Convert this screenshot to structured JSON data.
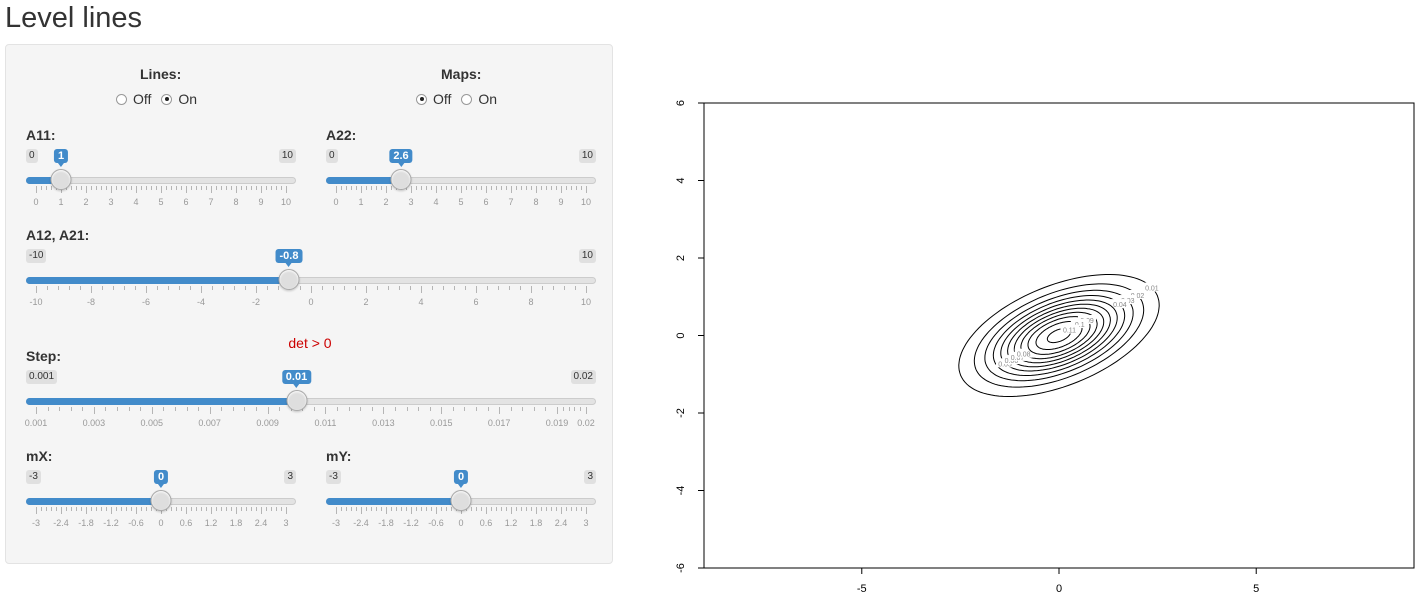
{
  "page": {
    "title": "Level lines"
  },
  "lines": {
    "label": "Lines:",
    "options": [
      "Off",
      "On"
    ],
    "selected": "On"
  },
  "maps": {
    "label": "Maps:",
    "options": [
      "Off",
      "On"
    ],
    "selected": "Off"
  },
  "sliders": {
    "a11": {
      "label": "A11:",
      "min": 0,
      "max": 10,
      "value": 1,
      "min_label": "0",
      "max_label": "10",
      "value_label": "1",
      "tick_labels": [
        "0",
        "1",
        "2",
        "3",
        "4",
        "5",
        "6",
        "7",
        "8",
        "9",
        "10"
      ]
    },
    "a22": {
      "label": "A22:",
      "min": 0,
      "max": 10,
      "value": 2.6,
      "min_label": "0",
      "max_label": "10",
      "value_label": "2.6",
      "tick_labels": [
        "0",
        "1",
        "2",
        "3",
        "4",
        "5",
        "6",
        "7",
        "8",
        "9",
        "10"
      ]
    },
    "a12": {
      "label": "A12, A21:",
      "min": -10,
      "max": 10,
      "value": -0.8,
      "min_label": "-10",
      "max_label": "10",
      "value_label": "-0.8",
      "tick_labels": [
        "-10",
        "-8",
        "-6",
        "-4",
        "-2",
        "0",
        "2",
        "4",
        "6",
        "8",
        "10"
      ]
    },
    "step": {
      "label": "Step:",
      "min": 0.001,
      "max": 0.02,
      "value": 0.01,
      "min_label": "0.001",
      "max_label": "0.02",
      "value_label": "0.01",
      "tick_labels": [
        "0.001",
        "0.003",
        "0.005",
        "0.007",
        "0.009",
        "0.011",
        "0.013",
        "0.015",
        "0.017",
        "0.019",
        "0.02"
      ],
      "tick_values": [
        0.001,
        0.003,
        0.005,
        0.007,
        0.009,
        0.011,
        0.013,
        0.015,
        0.017,
        0.019,
        0.02
      ]
    },
    "mx": {
      "label": "mX:",
      "min": -3,
      "max": 3,
      "value": 0,
      "min_label": "-3",
      "max_label": "3",
      "value_label": "0",
      "tick_labels": [
        "-3",
        "-2.4",
        "-1.8",
        "-1.2",
        "-0.6",
        "0",
        "0.6",
        "1.2",
        "1.8",
        "2.4",
        "3"
      ]
    },
    "my": {
      "label": "mY:",
      "min": -3,
      "max": 3,
      "value": 0,
      "min_label": "-3",
      "max_label": "3",
      "value_label": "0",
      "tick_labels": [
        "-3",
        "-2.4",
        "-1.8",
        "-1.2",
        "-0.6",
        "0",
        "0.6",
        "1.2",
        "1.8",
        "2.4",
        "3"
      ]
    }
  },
  "det_text": "det > 0",
  "accent": "#428bca",
  "det_color": "#cc0000",
  "chart_data": {
    "type": "contour",
    "xlim": [
      -9,
      9
    ],
    "ylim": [
      -6,
      6
    ],
    "x_ticks": [
      -5,
      0,
      5
    ],
    "y_ticks": [
      -6,
      -4,
      -2,
      0,
      2,
      4,
      6
    ],
    "matrix": {
      "a11": 1,
      "a22": 2.6,
      "a12": -0.8,
      "a21": -0.8
    },
    "center": [
      0,
      0
    ],
    "levels": [
      0.01,
      0.02,
      0.03,
      0.04,
      0.05,
      0.06,
      0.07,
      0.08,
      0.09,
      0.1,
      0.11
    ],
    "labels": [
      "0.01",
      "0.02",
      "0.03",
      "0.04",
      "0.05",
      "0.06",
      "0.07",
      "0.08",
      "0.09",
      "0.1",
      "0.11"
    ]
  }
}
